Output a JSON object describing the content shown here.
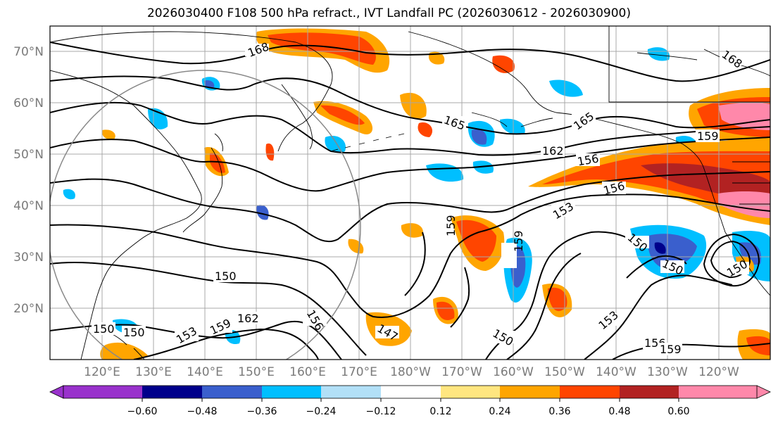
{
  "title": "2026030400 F108 500 hPa refract., IVT Landfall PC (2026030612 - 2026030900)",
  "lat_labels": [
    "70°N",
    "60°N",
    "50°N",
    "40°N",
    "30°N",
    "20°N"
  ],
  "lon_labels": [
    "120°E",
    "130°E",
    "140°E",
    "150°E",
    "160°E",
    "170°E",
    "180°W",
    "170°W",
    "160°W",
    "150°W",
    "140°W",
    "130°W",
    "120°W"
  ],
  "contour_labels": [
    "168",
    "165",
    "165",
    "162",
    "159",
    "156",
    "156",
    "153",
    "159",
    "159",
    "150",
    "150",
    "150",
    "153",
    "153",
    "159",
    "162",
    "156",
    "147",
    "150",
    "150",
    "156",
    "159",
    "150",
    "150",
    "168"
  ],
  "colorbar": {
    "tick_labels": [
      "−0.60",
      "−0.48",
      "−0.36",
      "−0.24",
      "−0.12",
      "0.12",
      "0.24",
      "0.36",
      "0.48",
      "0.60"
    ],
    "colors": [
      "#9932CC",
      "#00008B",
      "#3A5FCD",
      "#00BFFF",
      "#B2E0F7",
      "#FFFFFF",
      "#FFE680",
      "#FFA500",
      "#FF4500",
      "#B22222",
      "#FF88AA"
    ]
  }
}
